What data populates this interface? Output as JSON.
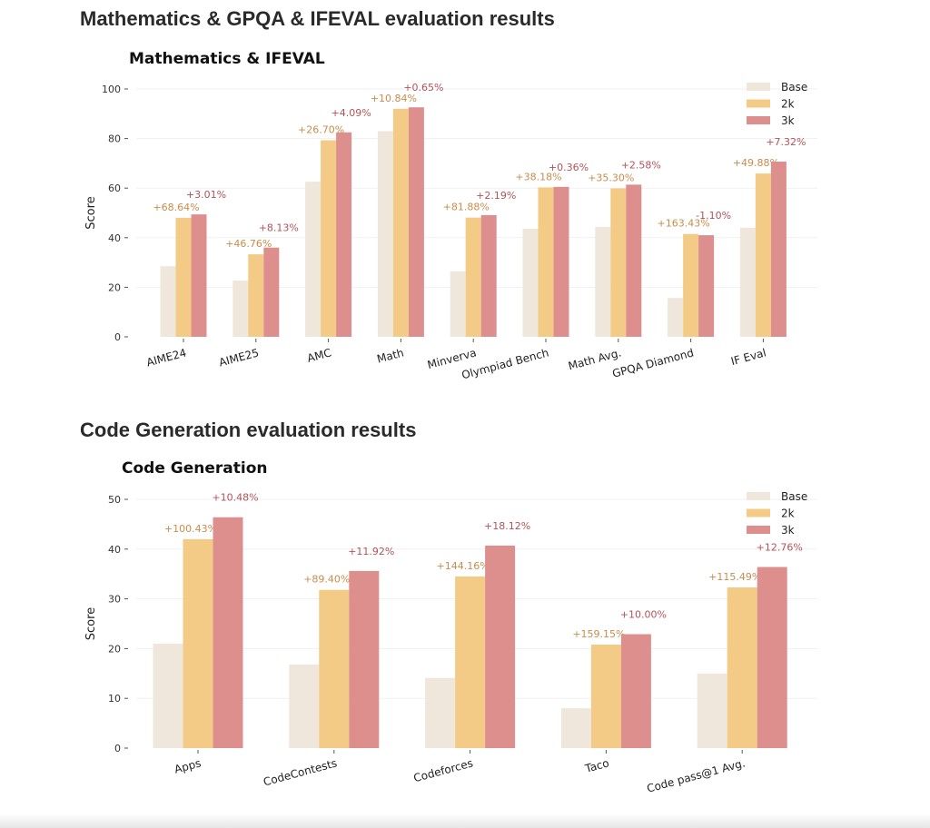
{
  "sections": [
    {
      "heading": "Mathematics & GPQA & IFEVAL evaluation results"
    },
    {
      "heading": "Code Generation evaluation results"
    }
  ],
  "colors": {
    "Base": "#EFE7DB",
    "2k": "#F3CB86",
    "3k": "#DD8F8D",
    "label_2k": "#C98C4C",
    "label_3k": "#B4525A"
  },
  "chart_data": [
    {
      "type": "bar",
      "title": "Mathematics & IFEVAL",
      "xlabel": "",
      "ylabel": "Score",
      "ylim": [
        0,
        100
      ],
      "yticks": [
        0,
        20,
        40,
        60,
        80,
        100
      ],
      "grid": true,
      "legend": "top-right",
      "categories": [
        "AIME24",
        "AIME25",
        "AMC",
        "Math",
        "Minverva",
        "Olympiad Bench",
        "Math Avg.",
        "GPQA Diamond",
        "IF Eval"
      ],
      "series": [
        {
          "name": "Base",
          "values": [
            28.5,
            22.7,
            62.6,
            83.0,
            26.4,
            43.6,
            44.3,
            15.7,
            44.0
          ]
        },
        {
          "name": "2k",
          "values": [
            48.0,
            33.3,
            79.3,
            92.0,
            48.1,
            60.3,
            59.9,
            41.5,
            65.9
          ],
          "labels": [
            "+68.64%",
            "+46.76%",
            "+26.70%",
            "+10.84%",
            "+81.88%",
            "+38.18%",
            "+35.30%",
            "+163.43%",
            "+49.88%"
          ]
        },
        {
          "name": "3k",
          "values": [
            49.4,
            36.0,
            82.5,
            92.6,
            49.1,
            60.5,
            61.4,
            41.0,
            70.7
          ],
          "labels": [
            "+3.01%",
            "+8.13%",
            "+4.09%",
            "+0.65%",
            "+2.19%",
            "+0.36%",
            "+2.58%",
            "-1.10%",
            "+7.32%"
          ]
        }
      ]
    },
    {
      "type": "bar",
      "title": "Code Generation",
      "xlabel": "",
      "ylabel": "Score",
      "ylim": [
        0,
        50
      ],
      "yticks": [
        0,
        10,
        20,
        30,
        40,
        50
      ],
      "grid": true,
      "legend": "top-right",
      "categories": [
        "Apps",
        "CodeContests",
        "Codeforces",
        "Taco",
        "Code pass@1 Avg."
      ],
      "series": [
        {
          "name": "Base",
          "values": [
            21.0,
            16.8,
            14.1,
            8.0,
            15.0
          ]
        },
        {
          "name": "2k",
          "values": [
            42.0,
            31.8,
            34.5,
            20.8,
            32.3
          ],
          "labels": [
            "+100.43%",
            "+89.40%",
            "+144.16%",
            "+159.15%",
            "+115.49%"
          ]
        },
        {
          "name": "3k",
          "values": [
            46.4,
            35.6,
            40.7,
            22.9,
            36.4
          ],
          "labels": [
            "+10.48%",
            "+11.92%",
            "+18.12%",
            "+10.00%",
            "+12.76%"
          ]
        }
      ]
    }
  ]
}
